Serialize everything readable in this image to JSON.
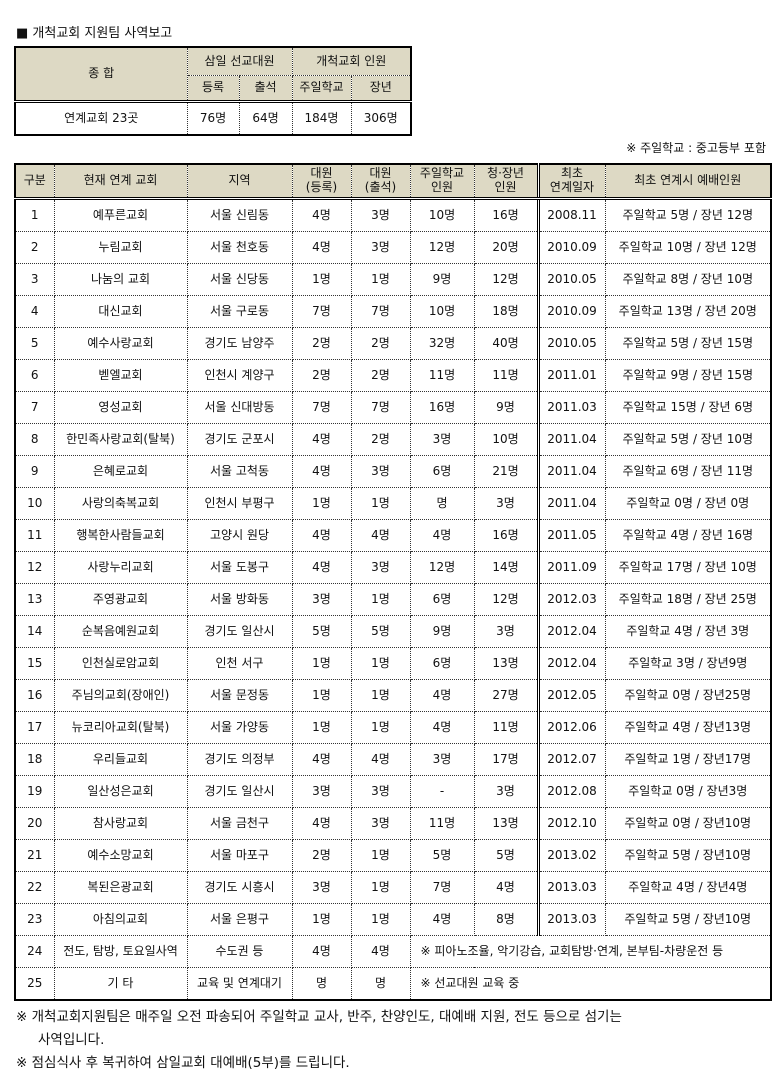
{
  "title": "■ 개척교회 지원팀 사역보고",
  "summary": {
    "header_total": "종 합",
    "group1": "삼일 선교대원",
    "group2": "개척교회 인원",
    "sub": [
      "등록",
      "출석",
      "주일학교",
      "장년"
    ],
    "row_label": "연계교회 23곳",
    "values": [
      "76명",
      "64명",
      "184명",
      "306명"
    ]
  },
  "note": "※ 주일학교 : 중고등부 포함",
  "main": {
    "headers": [
      "구분",
      "현재 연계 교회",
      "지역",
      "대원\n(등록)",
      "대원\n(출석)",
      "주일학교\n인원",
      "청·장년\n인원",
      "최초\n연계일자",
      "최초 연계시 예배인원"
    ],
    "rows": [
      [
        "1",
        "예푸른교회",
        "서울 신림동",
        "4명",
        "3명",
        "10명",
        "16명",
        "2008.11",
        "주일학교 5명 / 장년 12명"
      ],
      [
        "2",
        "누림교회",
        "서울 천호동",
        "4명",
        "3명",
        "12명",
        "20명",
        "2010.09",
        "주일학교 10명 / 장년 12명"
      ],
      [
        "3",
        "나눔의 교회",
        "서울 신당동",
        "1명",
        "1명",
        "9명",
        "12명",
        "2010.05",
        "주일학교 8명 / 장년 10명"
      ],
      [
        "4",
        "대신교회",
        "서울 구로동",
        "7명",
        "7명",
        "10명",
        "18명",
        "2010.09",
        "주일학교 13명 / 장년 20명"
      ],
      [
        "5",
        "예수사랑교회",
        "경기도 남양주",
        "2명",
        "2명",
        "32명",
        "40명",
        "2010.05",
        "주일학교 5명 / 장년 15명"
      ],
      [
        "6",
        "벧엘교회",
        "인천시 계양구",
        "2명",
        "2명",
        "11명",
        "11명",
        "2011.01",
        "주일학교 9명 / 장년 15명"
      ],
      [
        "7",
        "영성교회",
        "서울 신대방동",
        "7명",
        "7명",
        "16명",
        "9명",
        "2011.03",
        "주일학교 15명 / 장년 6명"
      ],
      [
        "8",
        "한민족사랑교회(탈북)",
        "경기도 군포시",
        "4명",
        "2명",
        "3명",
        "10명",
        "2011.04",
        "주일학교 5명 / 장년 10명"
      ],
      [
        "9",
        "은혜로교회",
        "서울 고척동",
        "4명",
        "3명",
        "6명",
        "21명",
        "2011.04",
        "주일학교 6명 / 장년 11명"
      ],
      [
        "10",
        "사랑의축복교회",
        "인천시 부평구",
        "1명",
        "1명",
        "명",
        "3명",
        "2011.04",
        "주일학교 0명 / 장년 0명"
      ],
      [
        "11",
        "행복한사람들교회",
        "고양시 원당",
        "4명",
        "4명",
        "4명",
        "16명",
        "2011.05",
        "주일학교 4명 / 장년 16명"
      ],
      [
        "12",
        "사랑누리교회",
        "서울 도봉구",
        "4명",
        "3명",
        "12명",
        "14명",
        "2011.09",
        "주일학교 17명 / 장년 10명"
      ],
      [
        "13",
        "주영광교회",
        "서울 방화동",
        "3명",
        "1명",
        "6명",
        "12명",
        "2012.03",
        "주일학교 18명 / 장년 25명"
      ],
      [
        "14",
        "순복음예원교회",
        "경기도 일산시",
        "5명",
        "5명",
        "9명",
        "3명",
        "2012.04",
        "주일학교 4명 / 장년 3명"
      ],
      [
        "15",
        "인천실로암교회",
        "인천 서구",
        "1명",
        "1명",
        "6명",
        "13명",
        "2012.04",
        "주일학교 3명 / 장년9명"
      ],
      [
        "16",
        "주님의교회(장애인)",
        "서울 문정동",
        "1명",
        "1명",
        "4명",
        "27명",
        "2012.05",
        "주일학교 0명 / 장년25명"
      ],
      [
        "17",
        "뉴코리아교회(탈북)",
        "서울 가양동",
        "1명",
        "1명",
        "4명",
        "11명",
        "2012.06",
        "주일학교 4명 / 장년13명"
      ],
      [
        "18",
        "우리들교회",
        "경기도 의정부",
        "4명",
        "4명",
        "3명",
        "17명",
        "2012.07",
        "주일학교 1명 / 장년17명"
      ],
      [
        "19",
        "일산성은교회",
        "경기도 일산시",
        "3명",
        "3명",
        "-",
        "3명",
        "2012.08",
        "주일학교 0명 / 장년3명"
      ],
      [
        "20",
        "참사랑교회",
        "서울 금천구",
        "4명",
        "3명",
        "11명",
        "13명",
        "2012.10",
        "주일학교 0명 / 장년10명"
      ],
      [
        "21",
        "예수소망교회",
        "서울 마포구",
        "2명",
        "1명",
        "5명",
        "5명",
        "2013.02",
        "주일학교 5명 / 장년10명"
      ],
      [
        "22",
        "복된은광교회",
        "경기도 시흥시",
        "3명",
        "1명",
        "7명",
        "4명",
        "2013.03",
        "주일학교 4명 / 장년4명"
      ],
      [
        "23",
        "아침의교회",
        "서울 은평구",
        "1명",
        "1명",
        "4명",
        "8명",
        "2013.03",
        "주일학교 5명 / 장년10명"
      ]
    ],
    "extra_rows": [
      [
        "24",
        "전도, 탐방, 토요일사역",
        "수도권 등",
        "4명",
        "4명",
        "※ 피아노조율, 악기강습, 교회탐방·연계, 본부팀-차량운전 등"
      ],
      [
        "25",
        "기 타",
        "교육 및 연계대기",
        "명",
        "명",
        "※ 선교대원 교육 중"
      ]
    ]
  },
  "footnotes": [
    "※ 개척교회지원팀은 매주일 오전 파송되어 주일학교 교사, 반주, 찬양인도, 대예배 지원, 전도 등으로 섬기는",
    "사역입니다.",
    "※ 점심식사 후 복귀하여 삼일교회 대예배(5부)를 드립니다."
  ],
  "colors": {
    "header_bg": "#ddd9c4"
  }
}
